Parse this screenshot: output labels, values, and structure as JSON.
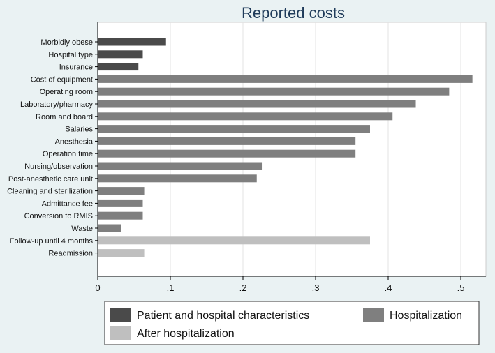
{
  "chart_data": {
    "type": "bar",
    "orientation": "horizontal",
    "title": "Reported costs",
    "xlabel": "",
    "ylabel": "",
    "xlim": [
      0,
      0.55
    ],
    "xticks": [
      0,
      0.1,
      0.2,
      0.3,
      0.4,
      0.5
    ],
    "xtick_labels": [
      "0",
      ".1",
      ".2",
      ".3",
      ".4",
      ".5"
    ],
    "grid": "vertical",
    "legend_position": "bottom",
    "groups": [
      {
        "name": "Patient and hospital characteristics",
        "color": "#4a4a4a"
      },
      {
        "name": "Hospitalization",
        "color": "#7f7f7f"
      },
      {
        "name": "After hospitalization",
        "color": "#bfbfbf"
      }
    ],
    "bars": [
      {
        "label": "Morbidly obese",
        "value": 0.094,
        "group": 0
      },
      {
        "label": "Hospital type",
        "value": 0.062,
        "group": 0
      },
      {
        "label": "Insurance",
        "value": 0.056,
        "group": 0
      },
      {
        "label": "Cost of equipment",
        "value": 0.516,
        "group": 1
      },
      {
        "label": "Operating room",
        "value": 0.484,
        "group": 1
      },
      {
        "label": "Laboratory/pharmacy",
        "value": 0.438,
        "group": 1
      },
      {
        "label": "Room and board",
        "value": 0.406,
        "group": 1
      },
      {
        "label": "Salaries",
        "value": 0.375,
        "group": 1
      },
      {
        "label": "Anesthesia",
        "value": 0.355,
        "group": 1
      },
      {
        "label": "Operation time",
        "value": 0.355,
        "group": 1
      },
      {
        "label": "Nursing/observation",
        "value": 0.226,
        "group": 1
      },
      {
        "label": "Post-anesthetic care unit",
        "value": 0.219,
        "group": 1
      },
      {
        "label": "Cleaning and sterilization",
        "value": 0.064,
        "group": 1
      },
      {
        "label": "Admittance fee",
        "value": 0.062,
        "group": 1
      },
      {
        "label": "Conversion to RMIS",
        "value": 0.062,
        "group": 1
      },
      {
        "label": "Waste",
        "value": 0.032,
        "group": 1
      },
      {
        "label": "Follow-up until 4 months",
        "value": 0.375,
        "group": 2
      },
      {
        "label": "Readmission",
        "value": 0.064,
        "group": 2
      }
    ]
  }
}
